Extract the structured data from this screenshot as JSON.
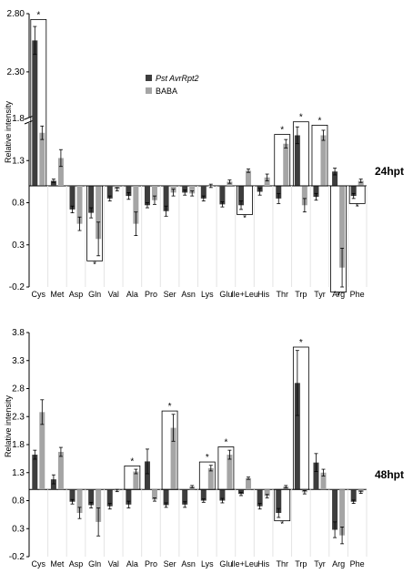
{
  "colors": {
    "pst": "#3d3d3d",
    "baba": "#a5a5a5",
    "frame": "#000000",
    "error": "#000000",
    "axis": "#000000"
  },
  "chart_data": [
    {
      "type": "bar",
      "time_label": "24hpt",
      "ylabel": "Relative intensity",
      "baseline": 1.0,
      "ylim": [
        -0.2,
        3.0
      ],
      "y_ticks": [
        "-0.2",
        "0.3",
        "0.8",
        "1.3",
        "1.8",
        "2.30",
        "2.80"
      ],
      "axis_break": true,
      "grid": false,
      "legend_position": "top-center",
      "categories": [
        "Cys",
        "Met",
        "Asp",
        "Gln",
        "Val",
        "Ala",
        "Pro",
        "Ser",
        "Asn",
        "Lys",
        "Glu",
        "Ile+Leu",
        "His",
        "Thr",
        "Trp",
        "Tyr",
        "Arg",
        "Phe"
      ],
      "series": [
        {
          "name": "Pst AvrRpt2",
          "values": [
            2.57,
            1.06,
            0.72,
            0.68,
            0.85,
            0.88,
            0.77,
            0.7,
            0.92,
            0.85,
            0.78,
            0.77,
            0.93,
            0.85,
            1.6,
            0.87,
            1.17,
            0.88
          ],
          "errors": [
            0.12,
            0.02,
            0.04,
            0.06,
            0.03,
            0.04,
            0.03,
            0.06,
            0.03,
            0.03,
            0.03,
            0.05,
            0.04,
            0.06,
            0.1,
            0.04,
            0.04,
            0.03
          ]
        },
        {
          "name": "BABA",
          "values": [
            1.63,
            1.33,
            0.55,
            0.37,
            0.96,
            0.55,
            0.83,
            0.92,
            0.91,
            1.0,
            1.05,
            1.18,
            1.1,
            1.5,
            0.77,
            1.6,
            0.03,
            1.06
          ],
          "errors": [
            0.08,
            0.1,
            0.08,
            0.2,
            0.02,
            0.14,
            0.05,
            0.04,
            0.03,
            0.02,
            0.02,
            0.02,
            0.04,
            0.05,
            0.08,
            0.06,
            0.23,
            0.02
          ]
        }
      ],
      "significant": [
        0,
        3,
        11,
        13,
        14,
        15,
        16,
        17
      ]
    },
    {
      "type": "bar",
      "time_label": "48hpt",
      "ylabel": "Relative intensity",
      "baseline": 1.0,
      "ylim": [
        -0.2,
        3.8
      ],
      "y_ticks": [
        "-0.2",
        "0.3",
        "0.8",
        "1.3",
        "1.8",
        "2.3",
        "2.8",
        "3.3",
        "3.8"
      ],
      "axis_break": false,
      "grid": false,
      "categories": [
        "Cys",
        "Met",
        "Asp",
        "Gln",
        "Val",
        "Ala",
        "Pro",
        "Ser",
        "Asn",
        "Lys",
        "Glu",
        "Ile+Leu",
        "His",
        "Thr",
        "Trp",
        "Tyr",
        "Arg",
        "Phe"
      ],
      "series": [
        {
          "name": "Pst AvrRpt2",
          "values": [
            1.62,
            1.18,
            0.78,
            0.72,
            0.7,
            0.73,
            1.5,
            0.72,
            0.73,
            0.8,
            0.8,
            0.92,
            0.7,
            0.58,
            2.9,
            1.48,
            0.28,
            0.78
          ],
          "errors": [
            0.08,
            0.08,
            0.04,
            0.05,
            0.05,
            0.06,
            0.22,
            0.04,
            0.05,
            0.03,
            0.04,
            0.03,
            0.05,
            0.08,
            0.58,
            0.16,
            0.14,
            0.03
          ]
        },
        {
          "name": "BABA",
          "values": [
            2.38,
            1.67,
            0.58,
            0.42,
            0.98,
            1.32,
            0.82,
            2.1,
            1.05,
            1.38,
            1.62,
            1.2,
            0.88,
            1.05,
            0.95,
            1.3,
            0.18,
            0.95
          ],
          "errors": [
            0.22,
            0.08,
            0.1,
            0.25,
            0.02,
            0.04,
            0.03,
            0.24,
            0.02,
            0.05,
            0.08,
            0.02,
            0.03,
            0.02,
            0.03,
            0.06,
            0.15,
            0.02
          ]
        }
      ],
      "significant": [
        5,
        7,
        9,
        10,
        13,
        14
      ]
    }
  ]
}
